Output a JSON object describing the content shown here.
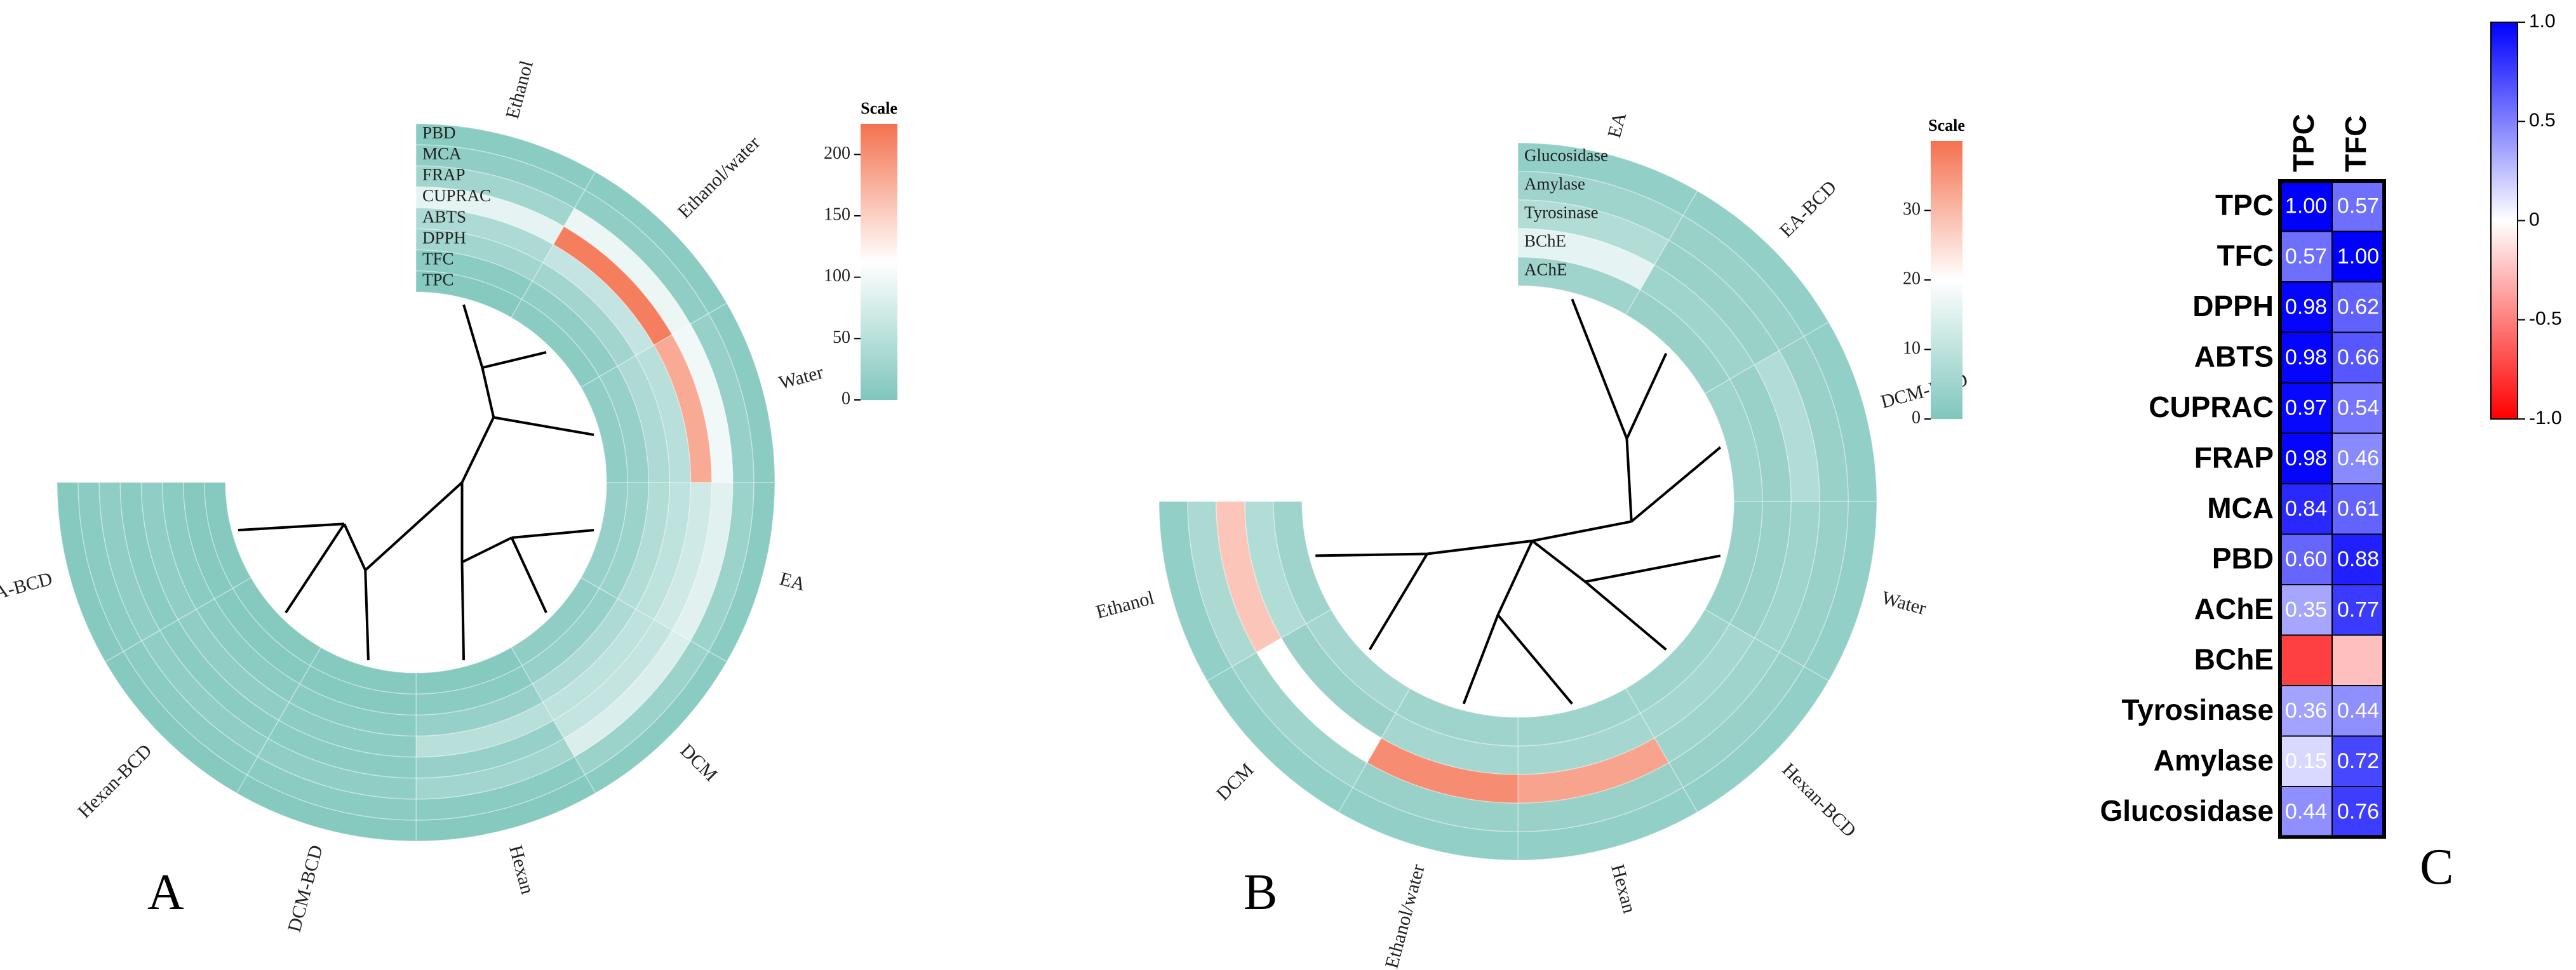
{
  "panels": {
    "A": {
      "label": "A",
      "chart_data": {
        "type": "circular_heatmap",
        "legend_title": "Scale",
        "scale_ticks": [
          "0",
          "50",
          "100",
          "150",
          "200"
        ],
        "scale_range": [
          0,
          225
        ],
        "colors": {
          "low": "#7fc6bc",
          "mid": "#ffffff",
          "high": "#f4714f"
        },
        "rings_outer_to_inner": [
          "PBD",
          "MCA",
          "FRAP",
          "CUPRAC",
          "ABTS",
          "DPPH",
          "TFC",
          "TPC"
        ],
        "samples": [
          "Ethanol",
          "Ethanol/water",
          "Water",
          "EA",
          "DCM",
          "Hexan",
          "DCM-BCD",
          "Hexan-BCD",
          "EA-BCD"
        ],
        "values": [
          [
            10,
            15,
            30,
            90,
            40,
            30,
            10,
            5
          ],
          [
            10,
            15,
            95,
            215,
            60,
            30,
            15,
            10
          ],
          [
            10,
            20,
            100,
            180,
            50,
            40,
            20,
            15
          ],
          [
            10,
            25,
            85,
            70,
            55,
            45,
            25,
            20
          ],
          [
            10,
            25,
            80,
            60,
            55,
            40,
            20,
            15
          ],
          [
            5,
            10,
            30,
            20,
            50,
            20,
            10,
            5
          ],
          [
            5,
            10,
            15,
            10,
            12,
            10,
            5,
            5
          ],
          [
            5,
            10,
            15,
            10,
            15,
            10,
            5,
            5
          ],
          [
            5,
            10,
            15,
            10,
            15,
            10,
            5,
            5
          ]
        ]
      }
    },
    "B": {
      "label": "B",
      "chart_data": {
        "type": "circular_heatmap",
        "legend_title": "Scale",
        "scale_ticks": [
          "0",
          "10",
          "20",
          "30"
        ],
        "scale_range": [
          0,
          40
        ],
        "colors": {
          "low": "#7fc6bc",
          "mid": "#ffffff",
          "high": "#f4714f"
        },
        "rings_outer_to_inner": [
          "Glucosidase",
          "Amylase",
          "Tyrosinase",
          "BChE",
          "AChE"
        ],
        "samples": [
          "EA",
          "EA-BCD",
          "DCM-BCD",
          "Water",
          "Hexan-BCD",
          "Hexan",
          "Ethanol/water",
          "DCM",
          "Ethanol"
        ],
        "values": [
          [
            3,
            5,
            8,
            16,
            5
          ],
          [
            3,
            4,
            4,
            5,
            4
          ],
          [
            3,
            4,
            8,
            4,
            5
          ],
          [
            3,
            4,
            5,
            4,
            4
          ],
          [
            3,
            4,
            5,
            6,
            5
          ],
          [
            3,
            4,
            33,
            6,
            5
          ],
          [
            3,
            4,
            36,
            6,
            5
          ],
          [
            3,
            5,
            20,
            4,
            6
          ],
          [
            3,
            7,
            28,
            8,
            5
          ]
        ]
      }
    },
    "C": {
      "label": "C",
      "chart_data": {
        "type": "heatmap",
        "columns": [
          "TPC",
          "TFC"
        ],
        "rows": [
          "TPC",
          "TFC",
          "DPPH",
          "ABTS",
          "CUPRAC",
          "FRAP",
          "MCA",
          "PBD",
          "AChE",
          "BChE",
          "Tyrosinase",
          "Amylase",
          "Glucosidase"
        ],
        "values": [
          [
            1.0,
            0.57
          ],
          [
            0.57,
            1.0
          ],
          [
            0.98,
            0.62
          ],
          [
            0.98,
            0.66
          ],
          [
            0.97,
            0.54
          ],
          [
            0.98,
            0.46
          ],
          [
            0.84,
            0.61
          ],
          [
            0.6,
            0.88
          ],
          [
            0.35,
            0.77
          ],
          [
            -0.75,
            -0.25
          ],
          [
            0.36,
            0.44
          ],
          [
            0.15,
            0.72
          ],
          [
            0.44,
            0.76
          ]
        ],
        "labels": [
          [
            "1.00",
            "0.57"
          ],
          [
            "0.57",
            "1.00"
          ],
          [
            "0.98",
            "0.62"
          ],
          [
            "0.98",
            "0.66"
          ],
          [
            "0.97",
            "0.54"
          ],
          [
            "0.98",
            "0.46"
          ],
          [
            "0.84",
            "0.61"
          ],
          [
            "0.60",
            "0.88"
          ],
          [
            "0.35",
            "0.77"
          ],
          [
            "",
            ""
          ],
          [
            "0.36",
            "0.44"
          ],
          [
            "0.15",
            "0.72"
          ],
          [
            "0.44",
            "0.76"
          ]
        ],
        "colorbar_ticks": [
          "1.0",
          "0.5",
          "0",
          "-0.5",
          "-1.0"
        ],
        "colorbar_range": [
          -1,
          1
        ],
        "colors": {
          "neg": "#ff0000",
          "zero": "#ffffff",
          "pos": "#0000ff"
        }
      }
    }
  }
}
